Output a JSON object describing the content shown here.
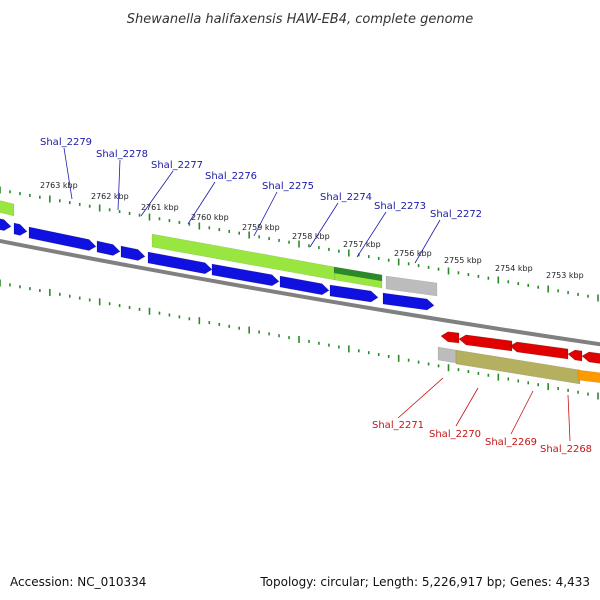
{
  "title": "Shewanella halifaxensis HAW-EB4, complete genome",
  "footer": {
    "accession": "Accession: NC_010334",
    "stats": "Topology: circular; Length: 5,226,917 bp; Genes: 4,433"
  },
  "colors": {
    "forward_label": "#1a1aa8",
    "reverse_label": "#c41414",
    "tick": "#2a8a2a",
    "backbone": "#808080",
    "forward_cds": "#1010e0",
    "reverse_cds": "#e00000",
    "feature_green": "#99e640",
    "feature_darkgreen": "#2a8a2a",
    "feature_gray": "#bcbcbc",
    "feature_olive": "#b5b060",
    "feature_orange": "#ff9900"
  },
  "tick_labels": [
    "2763 kbp",
    "2762 kbp",
    "2761 kbp",
    "2760 kbp",
    "2759 kbp",
    "2758 kbp",
    "2757 kbp",
    "2756 kbp",
    "2755 kbp",
    "2754 kbp",
    "2753 kbp"
  ],
  "forward_genes": [
    "Shal_2279",
    "Shal_2278",
    "Shal_2277",
    "Shal_2276",
    "Shal_2275",
    "Shal_2274",
    "Shal_2273",
    "Shal_2272"
  ],
  "reverse_genes": [
    "Shal_2271",
    "Shal_2270",
    "Shal_2269",
    "Shal_2268"
  ]
}
